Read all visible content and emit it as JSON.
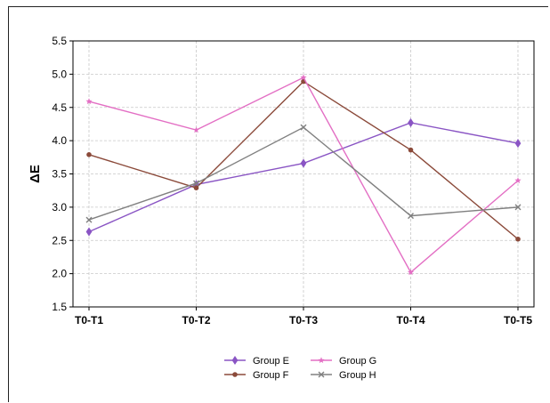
{
  "chart_data": {
    "type": "line",
    "title": "",
    "xlabel": "",
    "ylabel": "ΔE",
    "categories": [
      "T0-T1",
      "T0-T2",
      "T0-T3",
      "T0-T4",
      "T0-T5"
    ],
    "ylim": [
      1.5,
      5.5
    ],
    "yticks": [
      "1.5",
      "2.0",
      "2.5",
      "3.0",
      "3.5",
      "4.0",
      "4.5",
      "5.0",
      "5.5"
    ],
    "grid": true,
    "legend_position": "bottom-center",
    "series": [
      {
        "name": "Group E",
        "values": [
          2.63,
          3.34,
          3.66,
          4.27,
          3.96
        ],
        "color": "#8a55c4",
        "marker": "diamond"
      },
      {
        "name": "Group F",
        "values": [
          3.79,
          3.29,
          4.89,
          3.86,
          2.52
        ],
        "color": "#8b4a3a",
        "marker": "circle"
      },
      {
        "name": "Group G",
        "values": [
          4.59,
          4.16,
          4.95,
          2.02,
          3.4
        ],
        "color": "#e36fc4",
        "marker": "star"
      },
      {
        "name": "Group H",
        "values": [
          2.81,
          3.36,
          4.2,
          2.87,
          3.0
        ],
        "color": "#808080",
        "marker": "x"
      }
    ]
  }
}
